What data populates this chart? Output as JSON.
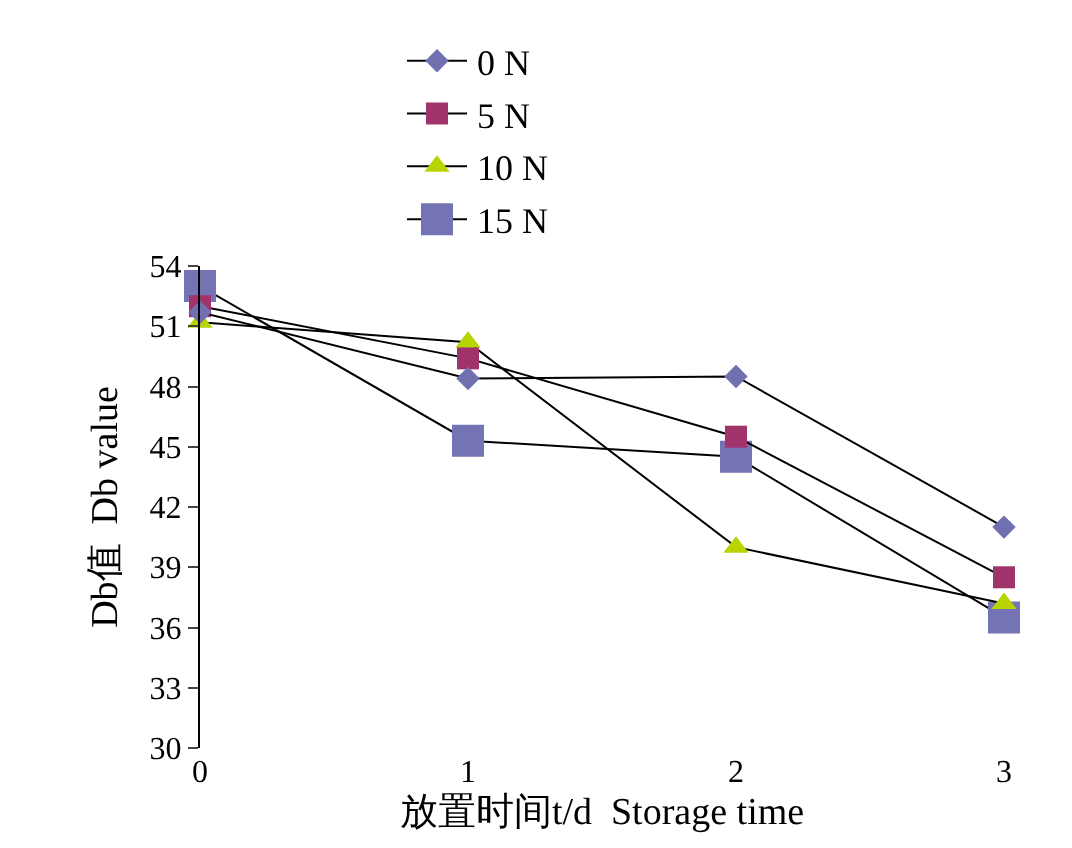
{
  "chart_data": {
    "type": "line",
    "xlabel": "放置时间t/d  Storage time",
    "ylabel": "Db值  Db value",
    "x": [
      0,
      1,
      2,
      3
    ],
    "xlim": [
      0,
      3
    ],
    "xticks": [
      0,
      1,
      2,
      3
    ],
    "ylim": [
      30,
      54
    ],
    "yticks": [
      30,
      33,
      36,
      39,
      42,
      45,
      48,
      51,
      54
    ],
    "grid": false,
    "legend": "top",
    "line_style": "solid",
    "series": [
      {
        "name": "0 N",
        "color": "#7070b0",
        "marker": "diamond",
        "values": [
          51.7,
          48.4,
          48.5,
          41.0
        ]
      },
      {
        "name": "5 N",
        "color": "#a0336a",
        "marker": "square",
        "values": [
          52.0,
          49.4,
          45.5,
          38.5
        ]
      },
      {
        "name": "10 N",
        "color": "#b8d400",
        "marker": "triangle",
        "values": [
          51.2,
          50.2,
          40.0,
          37.2
        ]
      },
      {
        "name": "15 N",
        "color": "#7474b4",
        "marker": "square",
        "values": [
          53.0,
          45.3,
          44.5,
          36.5
        ]
      }
    ]
  }
}
